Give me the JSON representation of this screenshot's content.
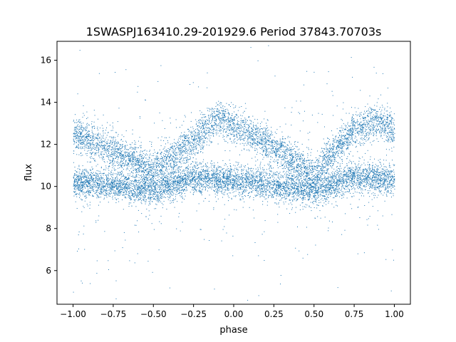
{
  "chart_data": {
    "type": "scatter",
    "title": "1SWASPJ163410.29-201929.6 Period 37843.70703s",
    "xlabel": "phase",
    "ylabel": "flux",
    "xlim": [
      -1.1,
      1.1
    ],
    "ylim": [
      4.4,
      16.9
    ],
    "xticks": [
      "−1.00",
      "−0.75",
      "−0.50",
      "−0.25",
      "0.00",
      "0.25",
      "0.50",
      "0.75",
      "1.00"
    ],
    "xtick_values": [
      -1.0,
      -0.75,
      -0.5,
      -0.25,
      0.0,
      0.25,
      0.5,
      0.75,
      1.0
    ],
    "yticks": [
      "6",
      "8",
      "10",
      "12",
      "14",
      "16"
    ],
    "ytick_values": [
      6,
      8,
      10,
      12,
      14,
      16
    ],
    "grid": false,
    "marker_color": "#1f77b4",
    "series": [
      {
        "description_points": "phase-folded light curve; two overlapping sequences",
        "band_low_centers": [
          [
            -1.0,
            10.2
          ],
          [
            -0.75,
            10.1
          ],
          [
            -0.5,
            9.8
          ],
          [
            -0.25,
            10.4
          ],
          [
            0.0,
            10.3
          ],
          [
            0.25,
            10.1
          ],
          [
            0.5,
            9.8
          ],
          [
            0.75,
            10.5
          ],
          [
            1.0,
            10.3
          ]
        ],
        "band_high_centers": [
          [
            -1.0,
            12.5
          ],
          [
            -0.75,
            11.7
          ],
          [
            -0.5,
            10.8
          ],
          [
            -0.25,
            12.2
          ],
          [
            -0.1,
            13.3
          ],
          [
            0.0,
            12.9
          ],
          [
            0.25,
            11.9
          ],
          [
            0.5,
            10.6
          ],
          [
            0.75,
            12.8
          ],
          [
            0.9,
            13.1
          ],
          [
            1.0,
            12.7
          ]
        ]
      }
    ]
  }
}
